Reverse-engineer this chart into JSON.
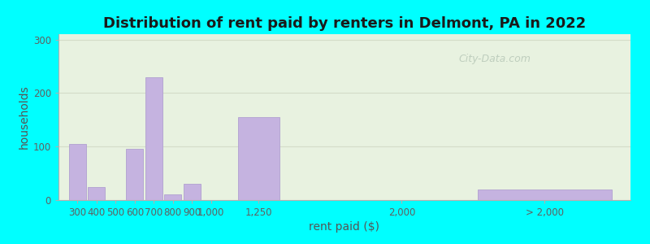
{
  "title": "Distribution of rent paid by renters in Delmont, PA in 2022",
  "xlabel": "rent paid ($)",
  "ylabel": "households",
  "bar_labels": [
    "300",
    "400",
    "500",
    "600",
    "700",
    "800",
    "900",
    "1,000",
    "1,250",
    "2,000",
    "> 2,000"
  ],
  "bar_values": [
    105,
    25,
    0,
    95,
    230,
    10,
    30,
    0,
    155,
    0,
    20
  ],
  "bar_color": "#c5b3e0",
  "bar_edge_color": "#b0a0d0",
  "background_outer": "#00ffff",
  "background_inner": "#e8f2e0",
  "yticks": [
    0,
    100,
    200,
    300
  ],
  "ylim": [
    0,
    310
  ],
  "title_fontsize": 13,
  "axis_label_fontsize": 10,
  "tick_fontsize": 8.5,
  "watermark_text": "City-Data.com",
  "watermark_color": "#b8c8b8",
  "grid_color": "#d4dcc8",
  "bar_centers": [
    300,
    400,
    500,
    600,
    700,
    800,
    900,
    1000,
    1250,
    2000,
    2750
  ],
  "bar_widths": [
    90,
    90,
    90,
    90,
    90,
    90,
    90,
    90,
    220,
    90,
    700
  ],
  "xtick_positions": [
    300,
    400,
    500,
    600,
    700,
    800,
    900,
    1000,
    1250,
    2000,
    2750
  ],
  "xlim_left": 200,
  "xlim_right": 3200
}
